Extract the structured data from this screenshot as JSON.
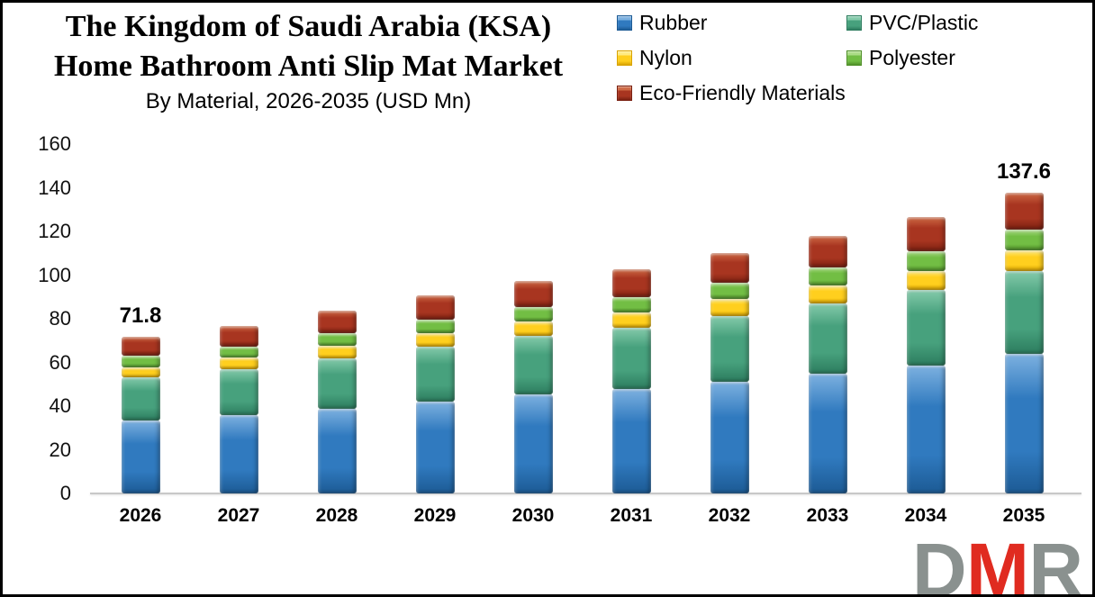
{
  "header": {
    "title_line1": "The Kingdom of Saudi Arabia (KSA)",
    "title_line2": "Home Bathroom Anti Slip Mat Market",
    "subtitle": "By Material, 2026-2035 (USD Mn)"
  },
  "chart_data": {
    "type": "bar",
    "stacked": true,
    "title": "The Kingdom of Saudi Arabia (KSA) Home Bathroom Anti Slip Mat Market",
    "subtitle": "By Material, 2026-2035 (USD Mn)",
    "categories": [
      "2026",
      "2027",
      "2028",
      "2029",
      "2030",
      "2031",
      "2032",
      "2033",
      "2034",
      "2035"
    ],
    "series": [
      {
        "name": "Rubber",
        "color": "#307ABF",
        "light": "#7DB1E0",
        "dark": "#1C5A94",
        "values": [
          33.3,
          35.7,
          38.8,
          42.2,
          45.3,
          47.7,
          51.2,
          54.7,
          58.7,
          64.0
        ]
      },
      {
        "name": "PVC/Plastic",
        "color": "#47A17D",
        "light": "#85CBAB",
        "dark": "#2C7C5E",
        "values": [
          19.7,
          21.1,
          22.9,
          24.9,
          26.7,
          28.1,
          30.2,
          32.3,
          34.6,
          37.7
        ]
      },
      {
        "name": "Nylon",
        "color": "#FFCF1E",
        "light": "#FFEB82",
        "dark": "#D9A300",
        "values": [
          4.9,
          5.3,
          5.8,
          6.3,
          6.7,
          7.1,
          7.6,
          8.1,
          8.7,
          9.5
        ]
      },
      {
        "name": "Polyester",
        "color": "#72BE44",
        "light": "#ABDC87",
        "dark": "#4F8F28",
        "values": [
          5.0,
          5.3,
          5.8,
          6.3,
          6.8,
          7.1,
          7.6,
          8.2,
          8.8,
          9.5
        ]
      },
      {
        "name": "Eco-Friendly Materials",
        "color": "#A83520",
        "light": "#CE6A45",
        "dark": "#791F10",
        "values": [
          8.9,
          9.5,
          10.3,
          11.2,
          12.0,
          12.6,
          13.6,
          14.5,
          15.6,
          16.9
        ]
      }
    ],
    "totals": [
      71.8,
      76.9,
      83.6,
      90.9,
      97.5,
      102.6,
      110.2,
      117.8,
      126.4,
      137.6
    ],
    "data_labels": [
      {
        "category_index": 0,
        "text": "71.8"
      },
      {
        "category_index": 9,
        "text": "137.6"
      }
    ],
    "ylim": [
      0,
      160
    ],
    "yticks": [
      0,
      20,
      40,
      60,
      80,
      100,
      120,
      140,
      160
    ],
    "grid": false,
    "legend_position": "top-right",
    "xlabel": "",
    "ylabel": ""
  },
  "logo": {
    "letters": [
      {
        "text": "D",
        "color": "#8A918F"
      },
      {
        "text": "M",
        "color": "#E02B20"
      },
      {
        "text": "R",
        "color": "#8A918F"
      }
    ]
  }
}
